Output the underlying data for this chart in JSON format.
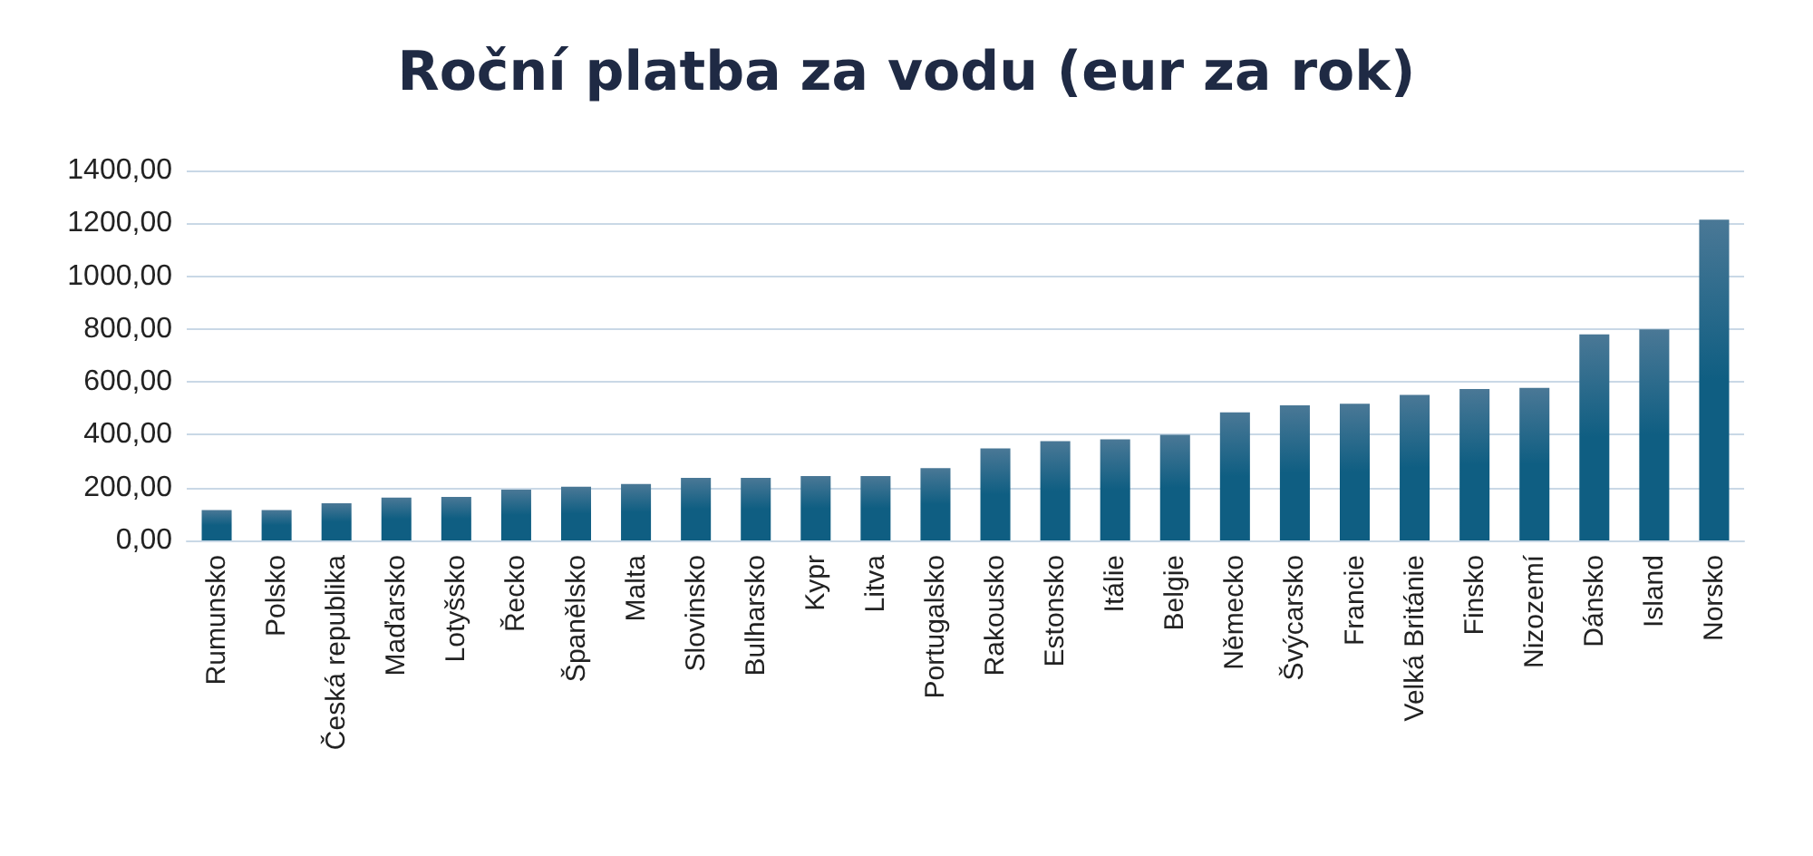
{
  "chart_data": {
    "type": "bar",
    "title": "Roční platba za vodu (eur za rok)",
    "categories": [
      "Rumunsko",
      "Polsko",
      "Česká republika",
      "Maďarsko",
      "Lotyšsko",
      "Řecko",
      "Španělsko",
      "Malta",
      "Slovinsko",
      "Bulharsko",
      "Kypr",
      "Litva",
      "Portugalsko",
      "Rakousko",
      "Estonsko",
      "Itálie",
      "Belgie",
      "Německo",
      "Švýcarsko",
      "Francie",
      "Velká Británie",
      "Finsko",
      "Nizozemí",
      "Dánsko",
      "Island",
      "Norsko"
    ],
    "values": [
      115,
      115,
      141,
      162,
      165,
      192,
      203,
      214,
      237,
      237,
      244,
      244,
      274,
      348,
      376,
      383,
      400,
      485,
      511,
      517,
      551,
      573,
      577,
      780,
      799,
      1214
    ],
    "color": "#0f5e82",
    "ylim": [
      0,
      1400
    ],
    "yticks": [
      {
        "value": 0,
        "label": "0,00"
      },
      {
        "value": 200,
        "label": "200,00"
      },
      {
        "value": 400,
        "label": "400,00"
      },
      {
        "value": 600,
        "label": "600,00"
      },
      {
        "value": 800,
        "label": "800,00"
      },
      {
        "value": 1000,
        "label": "1000,00"
      },
      {
        "value": 1200,
        "label": "1200,00"
      },
      {
        "value": 1400,
        "label": "1400,00"
      }
    ],
    "grid": true
  }
}
